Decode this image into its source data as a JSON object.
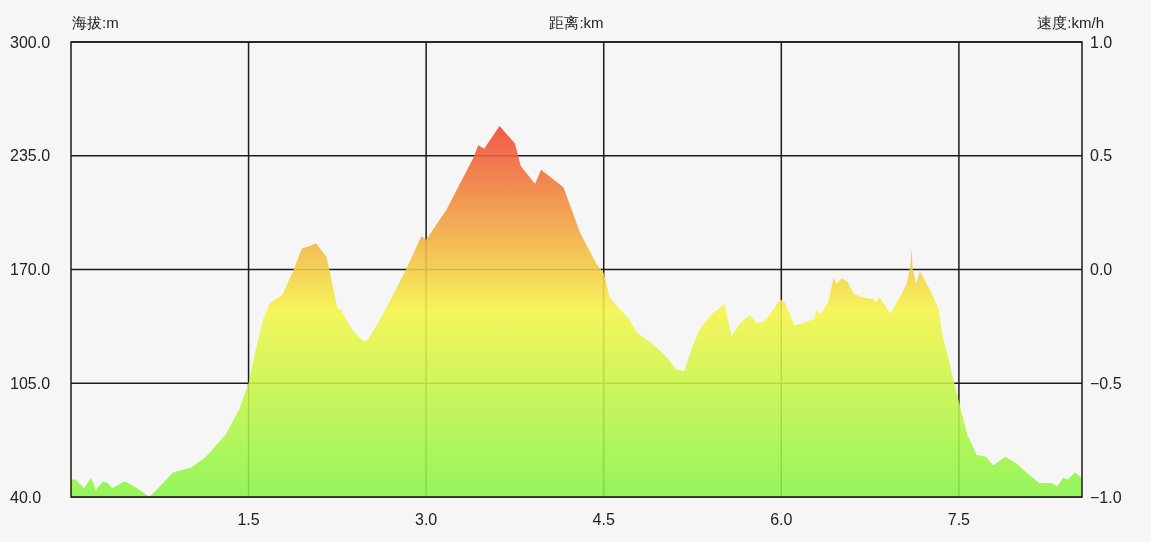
{
  "chart_data": {
    "type": "area",
    "xlabel": "距离:km",
    "ylabel": "海拔:m",
    "y2label": "速度:km/h",
    "xlim": [
      0,
      8.54
    ],
    "xticks": [
      1.5,
      {
        "value": 3,
        "label": "3.0"
      },
      4.5,
      {
        "value": 6,
        "label": "6.0"
      },
      7.5
    ],
    "ylim": [
      40,
      300
    ],
    "yticks": [
      {
        "value": 40,
        "label": "40.0"
      },
      {
        "value": 105,
        "label": "105.0"
      },
      {
        "value": 170,
        "label": "170.0"
      },
      {
        "value": 235,
        "label": "235.0"
      },
      {
        "value": 300,
        "label": "300.0"
      }
    ],
    "y2lim": [
      -1,
      1
    ],
    "y2ticks": [
      {
        "value": -1,
        "label": "−1.0"
      },
      {
        "value": -0.5,
        "label": "−0.5"
      },
      {
        "value": 0,
        "label": "0.0"
      },
      {
        "value": 0.5,
        "label": "0.5"
      },
      {
        "value": 1,
        "label": "1.0"
      }
    ],
    "grid": true,
    "x": [
      0,
      0.04,
      0.11,
      0.17,
      0.21,
      0.27,
      0.31,
      0.35,
      0.45,
      0.51,
      0.58,
      0.66,
      0.75,
      0.86,
      0.97,
      1.02,
      1.14,
      1.31,
      1.42,
      1.5,
      1.56,
      1.62,
      1.68,
      1.78,
      1.87,
      1.95,
      2.0,
      2.07,
      2.16,
      2.2,
      2.25,
      2.28,
      2.38,
      2.47,
      2.51,
      2.64,
      2.83,
      2.96,
      3.0,
      3.17,
      3.4,
      3.44,
      3.49,
      3.62,
      3.75,
      3.8,
      3.92,
      3.97,
      4.16,
      4.3,
      4.44,
      4.5,
      4.55,
      4.64,
      4.71,
      4.78,
      4.92,
      5.03,
      5.11,
      5.18,
      5.24,
      5.31,
      5.42,
      5.52,
      5.58,
      5.65,
      5.73,
      5.8,
      5.87,
      5.99,
      6.03,
      6.11,
      6.21,
      6.28,
      6.3,
      6.33,
      6.4,
      6.44,
      6.47,
      6.51,
      6.56,
      6.61,
      6.69,
      6.78,
      6.79,
      6.83,
      6.92,
      7.0,
      7.06,
      7.09,
      7.1,
      7.11,
      7.14,
      7.17,
      7.26,
      7.33,
      7.36,
      7.4,
      7.44,
      7.49,
      7.57,
      7.65,
      7.73,
      7.79,
      7.89,
      7.99,
      8.07,
      8.18,
      8.28,
      8.33,
      8.38,
      8.42,
      8.48,
      8.54
    ],
    "series": [
      {
        "color": "#f5f547",
        "values": [
          50,
          50,
          45,
          51,
          44,
          49,
          48,
          45,
          49,
          47,
          44,
          40,
          46,
          54,
          56,
          57,
          63,
          76,
          90,
          105,
          124,
          141,
          151,
          155,
          168,
          182,
          183,
          185,
          177,
          164,
          148,
          147,
          135,
          129,
          130,
          145,
          170,
          189,
          187,
          204,
          234,
          241,
          239,
          252,
          242,
          229,
          219,
          227,
          217,
          191,
          173,
          168,
          154,
          147,
          142,
          134,
          127,
          120,
          113,
          112,
          124,
          136,
          145,
          150,
          132,
          139,
          144,
          139,
          141,
          153,
          151,
          138,
          140,
          142,
          147,
          144,
          152,
          165,
          162,
          165,
          163,
          156,
          154,
          153,
          151,
          154,
          145,
          154,
          162,
          172,
          182,
          170,
          162,
          169,
          158,
          147,
          133,
          122,
          111,
          97,
          76,
          64,
          63,
          58,
          63,
          59,
          54,
          48,
          48,
          46,
          51,
          50,
          54,
          51
        ]
      }
    ]
  }
}
